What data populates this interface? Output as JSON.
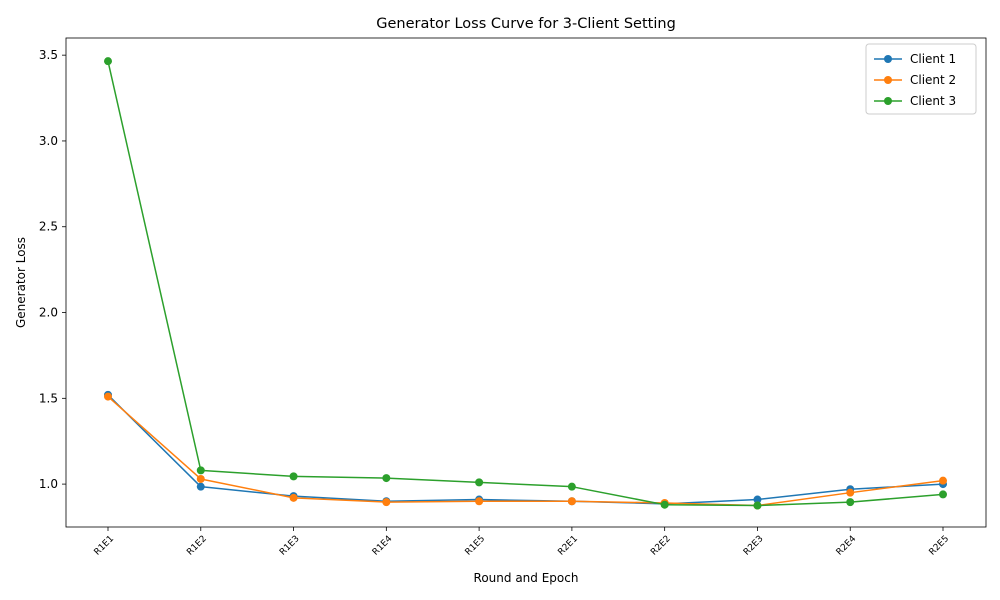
{
  "chart_data": {
    "type": "line",
    "title": "Generator Loss Curve for 3-Client Setting",
    "xlabel": "Round and Epoch",
    "ylabel": "Generator Loss",
    "categories": [
      "R1E1",
      "R1E2",
      "R1E3",
      "R1E4",
      "R1E5",
      "R2E1",
      "R2E2",
      "R2E3",
      "R2E4",
      "R2E5"
    ],
    "yticks": [
      "1.0",
      "1.5",
      "2.0",
      "2.5",
      "3.0",
      "3.5"
    ],
    "ylim": [
      0.75,
      3.6
    ],
    "grid": false,
    "legend_position": "top-right",
    "series": [
      {
        "name": "Client 1",
        "color": "#1f77b4",
        "marker": "circle",
        "values": [
          1.52,
          0.985,
          0.93,
          0.9,
          0.91,
          0.9,
          0.885,
          0.91,
          0.97,
          1.0
        ]
      },
      {
        "name": "Client 2",
        "color": "#ff7f0e",
        "marker": "circle",
        "values": [
          1.51,
          1.03,
          0.92,
          0.895,
          0.9,
          0.9,
          0.89,
          0.875,
          0.95,
          1.02
        ]
      },
      {
        "name": "Client 3",
        "color": "#2ca02c",
        "marker": "circle",
        "values": [
          3.465,
          1.08,
          1.045,
          1.035,
          1.01,
          0.985,
          0.88,
          0.875,
          0.895,
          0.94
        ]
      }
    ]
  }
}
